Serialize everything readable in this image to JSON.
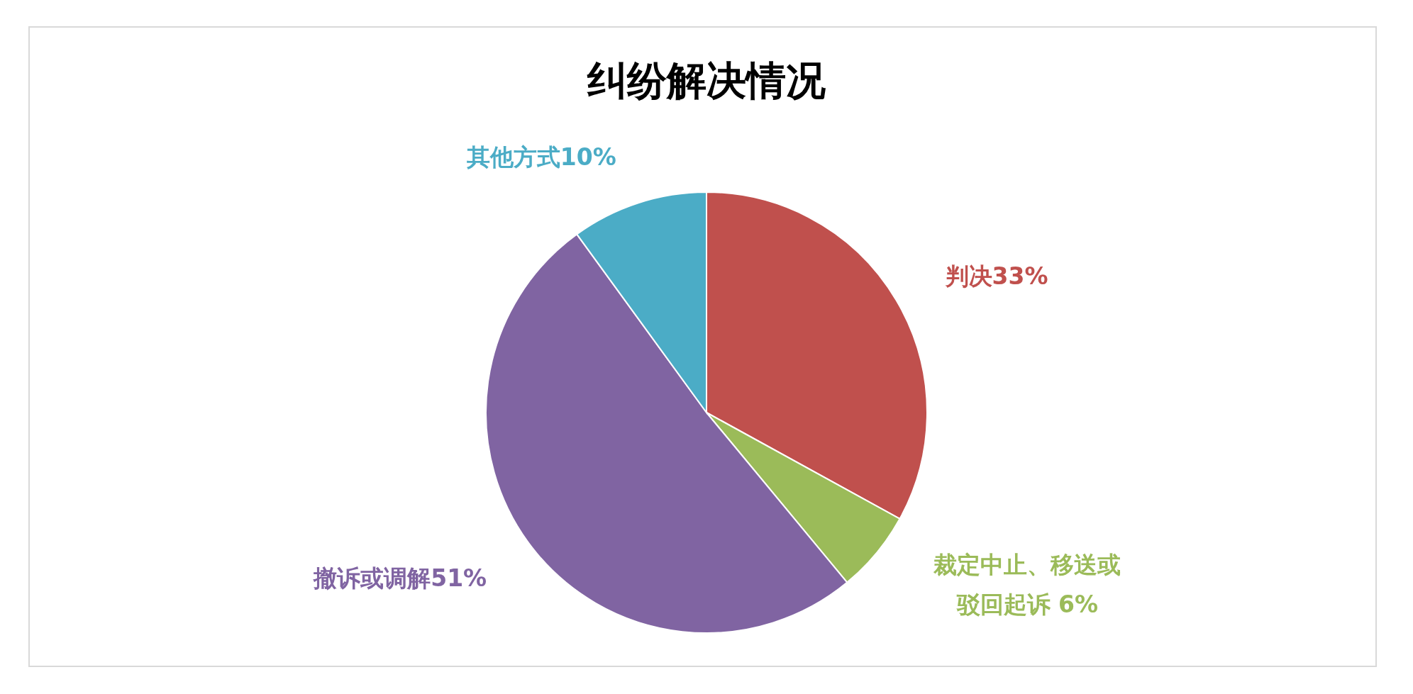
{
  "chart_data": {
    "type": "pie",
    "title": "纠纷解决情况",
    "categories": [
      "判决",
      "裁定中止、移送或驳回起诉",
      "撤诉或调解",
      "其他方式"
    ],
    "values": [
      33,
      6,
      51,
      10
    ],
    "colors": [
      "#c0504d",
      "#9bbb59",
      "#8064a2",
      "#4bacc6"
    ],
    "value_labels": [
      "33%",
      "6%",
      "51%",
      "10%"
    ]
  }
}
